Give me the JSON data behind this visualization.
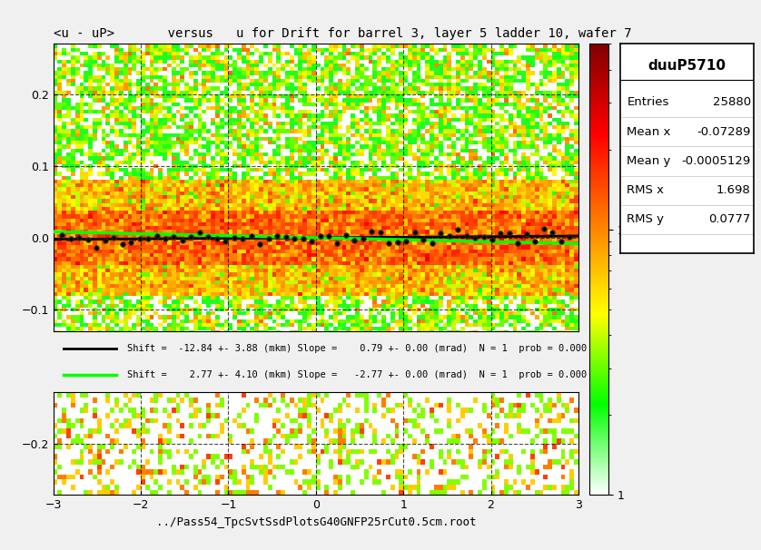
{
  "title": "<u - uP>       versus   u for Drift for barrel 3, layer 5 ladder 10, wafer 7",
  "xlabel": "../Pass54_TpcSvtSsdPlotsG40GNFP25rCut0.5cm.root",
  "stats_title": "duuP5710",
  "stats": {
    "Entries": "25880",
    "Mean x": "-0.07289",
    "Mean y": "-0.0005129",
    "RMS x": "1.698",
    "RMS y": "0.0777"
  },
  "xmin": -3,
  "xmax": 3,
  "ymin": -0.27,
  "ymax": 0.27,
  "legend_line1": "Shift =  -12.84 +- 3.88 (mkm) Slope =    0.79 +- 0.00 (mrad)  N = 1  prob = 0.000",
  "legend_line2": "Shift =    2.77 +- 4.10 (mkm) Slope =   -2.77 +- 0.00 (mrad)  N = 1  prob = 0.000",
  "bg_color": "#f0f0f0",
  "dashed_y_lines": [
    -0.2,
    -0.1,
    0.0,
    0.1,
    0.2
  ],
  "dashed_x_lines": [
    -2,
    -1,
    0,
    1,
    2
  ]
}
